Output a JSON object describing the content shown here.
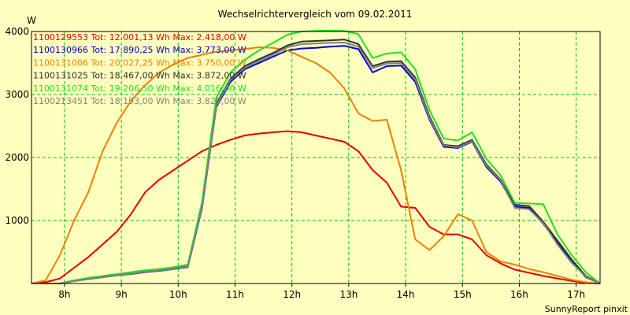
{
  "chart_data": {
    "type": "line",
    "title": "Wechselrichtervergleich vom 09.02.2011",
    "ylabel": "W",
    "xlabel": "",
    "xlim": [
      7.42,
      17.42
    ],
    "ylim": [
      0,
      4000
    ],
    "grid": true,
    "legend_position": "top-left",
    "x_ticks": [
      {
        "v": 8,
        "label": "8h"
      },
      {
        "v": 9,
        "label": "9h"
      },
      {
        "v": 10,
        "label": "10h"
      },
      {
        "v": 11,
        "label": "11h"
      },
      {
        "v": 12,
        "label": "12h"
      },
      {
        "v": 13,
        "label": "13h"
      },
      {
        "v": 14,
        "label": "14h"
      },
      {
        "v": 15,
        "label": "15h"
      },
      {
        "v": 16,
        "label": "16h"
      },
      {
        "v": 17,
        "label": "17h"
      }
    ],
    "y_ticks": [
      {
        "v": 1000,
        "label": "1000"
      },
      {
        "v": 2000,
        "label": "2000"
      },
      {
        "v": 3000,
        "label": "3000"
      },
      {
        "v": 4000,
        "label": "4000"
      }
    ],
    "credit": "SunnyReport pinxit",
    "series": [
      {
        "name": "1100129553",
        "legend": "1100129553 Tot: 12.001,13 Wh Max: 2.418,00 W",
        "color": "#e00000",
        "x": [
          7.42,
          7.67,
          7.92,
          8.17,
          8.42,
          8.67,
          8.92,
          9.17,
          9.42,
          9.67,
          9.92,
          10.17,
          10.42,
          10.67,
          10.92,
          11.17,
          11.42,
          11.67,
          11.92,
          12.17,
          12.42,
          12.67,
          12.92,
          13.17,
          13.42,
          13.67,
          13.92,
          14.17,
          14.42,
          14.67,
          14.92,
          15.17,
          15.42,
          15.67,
          15.92,
          16.17,
          16.42,
          16.67,
          16.92,
          17.17,
          17.42
        ],
        "y": [
          0,
          20,
          80,
          250,
          420,
          620,
          820,
          1100,
          1450,
          1650,
          1800,
          1950,
          2100,
          2200,
          2280,
          2350,
          2380,
          2400,
          2418,
          2400,
          2350,
          2300,
          2250,
          2100,
          1800,
          1600,
          1220,
          1200,
          900,
          780,
          780,
          700,
          450,
          320,
          220,
          170,
          120,
          80,
          40,
          10,
          0
        ]
      },
      {
        "name": "1100130966",
        "legend": "1100130966 Tot: 17.890,25 Wh Max: 3.773,00 W",
        "color": "#0000d0",
        "x": [
          7.42,
          7.67,
          7.92,
          8.17,
          8.42,
          8.67,
          8.92,
          9.17,
          9.42,
          9.67,
          9.92,
          10.17,
          10.42,
          10.67,
          10.92,
          11.17,
          11.42,
          11.67,
          11.92,
          12.17,
          12.42,
          12.67,
          12.92,
          13.17,
          13.42,
          13.67,
          13.92,
          14.17,
          14.42,
          14.67,
          14.92,
          15.17,
          15.42,
          15.67,
          15.92,
          16.17,
          16.42,
          16.67,
          16.92,
          17.17,
          17.42
        ],
        "y": [
          0,
          0,
          0,
          40,
          70,
          100,
          130,
          150,
          180,
          200,
          230,
          260,
          1200,
          2800,
          3200,
          3400,
          3500,
          3600,
          3700,
          3730,
          3740,
          3760,
          3773,
          3720,
          3350,
          3450,
          3460,
          3200,
          2600,
          2170,
          2150,
          2250,
          1850,
          1620,
          1220,
          1200,
          950,
          650,
          350,
          100,
          0
        ]
      },
      {
        "name": "1100131006",
        "legend": "1100131006 Tot: 20.027,25 Wh Max: 3.750,00 W",
        "color": "#f08000",
        "x": [
          7.42,
          7.67,
          7.92,
          8.17,
          8.42,
          8.67,
          8.92,
          9.17,
          9.42,
          9.67,
          9.92,
          10.17,
          10.42,
          10.67,
          10.92,
          11.17,
          11.42,
          11.67,
          11.92,
          12.17,
          12.42,
          12.67,
          12.92,
          13.17,
          13.42,
          13.67,
          13.92,
          14.17,
          14.42,
          14.67,
          14.92,
          15.17,
          15.42,
          15.67,
          15.92,
          16.17,
          16.42,
          16.67,
          16.92,
          17.17,
          17.42
        ],
        "y": [
          0,
          50,
          450,
          1000,
          1450,
          2100,
          2550,
          2900,
          3150,
          3350,
          3480,
          3580,
          3630,
          3680,
          3700,
          3720,
          3750,
          3740,
          3700,
          3600,
          3500,
          3350,
          3100,
          2700,
          2580,
          2600,
          1800,
          700,
          530,
          750,
          1100,
          1000,
          500,
          350,
          300,
          230,
          180,
          120,
          60,
          20,
          0
        ]
      },
      {
        "name": "1100131025",
        "legend": "1100131025 Tot: 18.467,00 Wh Max: 3.872,00 W",
        "color": "#303030",
        "x": [
          7.42,
          7.67,
          7.92,
          8.17,
          8.42,
          8.67,
          8.92,
          9.17,
          9.42,
          9.67,
          9.92,
          10.17,
          10.42,
          10.67,
          10.92,
          11.17,
          11.42,
          11.67,
          11.92,
          12.17,
          12.42,
          12.67,
          12.92,
          13.17,
          13.42,
          13.67,
          13.92,
          14.17,
          14.42,
          14.67,
          14.92,
          15.17,
          15.42,
          15.67,
          15.92,
          16.17,
          16.42,
          16.67,
          16.92,
          17.17,
          17.42
        ],
        "y": [
          0,
          0,
          0,
          40,
          75,
          105,
          135,
          160,
          190,
          210,
          240,
          270,
          1250,
          2850,
          3250,
          3450,
          3560,
          3660,
          3780,
          3840,
          3850,
          3860,
          3872,
          3800,
          3450,
          3520,
          3530,
          3270,
          2650,
          2200,
          2180,
          2280,
          1890,
          1650,
          1250,
          1230,
          980,
          680,
          380,
          120,
          0
        ]
      },
      {
        "name": "1100131074",
        "legend": "1100131074 Tot: 19.206,50 Wh Max: 4.016,00 W",
        "color": "#20e020",
        "x": [
          7.42,
          7.67,
          7.92,
          8.17,
          8.42,
          8.67,
          8.92,
          9.17,
          9.42,
          9.67,
          9.92,
          10.17,
          10.42,
          10.67,
          10.92,
          11.17,
          11.42,
          11.67,
          11.92,
          12.17,
          12.42,
          12.67,
          12.92,
          13.17,
          13.42,
          13.67,
          13.92,
          14.17,
          14.42,
          14.67,
          14.92,
          15.17,
          15.42,
          15.67,
          15.92,
          16.17,
          16.42,
          16.67,
          16.92,
          17.17,
          17.42
        ],
        "y": [
          0,
          0,
          0,
          50,
          90,
          120,
          150,
          180,
          210,
          230,
          260,
          300,
          1300,
          2950,
          3350,
          3550,
          3700,
          3820,
          3950,
          4000,
          4010,
          4016,
          4010,
          3960,
          3580,
          3650,
          3670,
          3400,
          2750,
          2300,
          2270,
          2400,
          1980,
          1720,
          1280,
          1270,
          1260,
          780,
          450,
          180,
          0
        ]
      },
      {
        "name": "1100213451",
        "legend": "1100213451 Tot: 18.193,00 Wh Max: 3.825,00 W",
        "color": "#808080",
        "x": [
          7.42,
          7.67,
          7.92,
          8.17,
          8.42,
          8.67,
          8.92,
          9.17,
          9.42,
          9.67,
          9.92,
          10.17,
          10.42,
          10.67,
          10.92,
          11.17,
          11.42,
          11.67,
          11.92,
          12.17,
          12.42,
          12.67,
          12.92,
          13.17,
          13.42,
          13.67,
          13.92,
          14.17,
          14.42,
          14.67,
          14.92,
          15.17,
          15.42,
          15.67,
          15.92,
          16.17,
          16.42,
          16.67,
          16.92,
          17.17,
          17.42
        ],
        "y": [
          0,
          0,
          0,
          38,
          72,
          102,
          132,
          155,
          185,
          205,
          235,
          265,
          1220,
          2820,
          3230,
          3420,
          3530,
          3630,
          3750,
          3800,
          3810,
          3820,
          3825,
          3760,
          3420,
          3490,
          3500,
          3240,
          2620,
          2190,
          2160,
          2260,
          1870,
          1640,
          1200,
          1180,
          960,
          620,
          330,
          110,
          0
        ]
      }
    ]
  }
}
